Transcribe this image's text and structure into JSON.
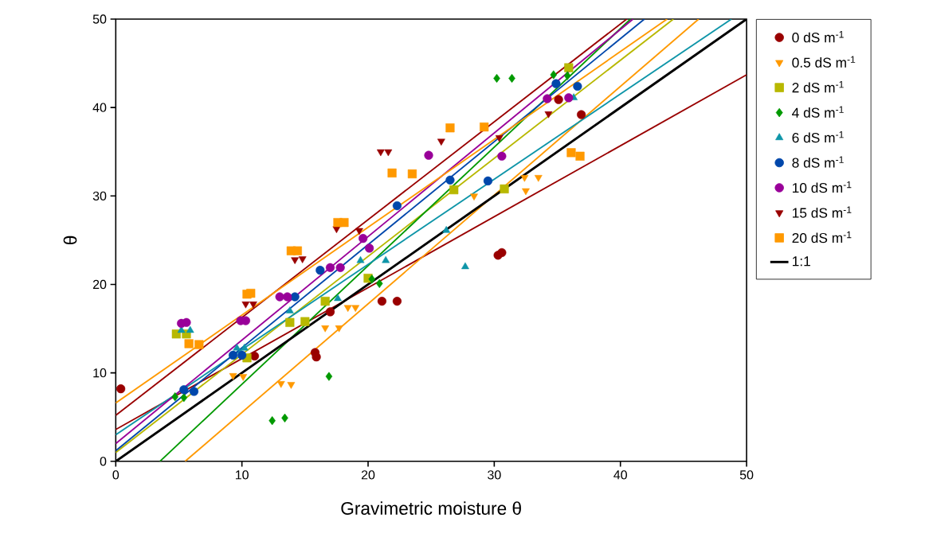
{
  "chart_data": {
    "type": "scatter",
    "xlabel": "Gravimetric moisture θ",
    "ylabel": "θ",
    "xlim": [
      0,
      50
    ],
    "ylim": [
      0,
      50
    ],
    "xticks": [
      0,
      10,
      20,
      30,
      40,
      50
    ],
    "yticks": [
      0,
      10,
      20,
      30,
      40,
      50
    ],
    "grid": false,
    "legend": "right",
    "series": [
      {
        "name": "0 dS m$^{-1}$",
        "color": "#990000",
        "marker": "circle",
        "x": [
          0.4,
          11.0,
          15.8,
          15.9,
          17.0,
          21.1,
          22.3,
          30.3,
          30.6,
          35.1,
          36.9
        ],
        "values": [
          8.2,
          11.9,
          12.3,
          11.8,
          16.9,
          18.1,
          18.1,
          23.3,
          23.6,
          40.9,
          39.2
        ]
      },
      {
        "name": "0.5 dS m$^{-1}$",
        "color": "#ff9900",
        "marker": "triangle-down",
        "x": [
          9.3,
          10.1,
          13.1,
          13.9,
          16.6,
          17.7,
          18.4,
          19.0,
          28.4,
          32.4,
          32.5,
          33.5
        ],
        "values": [
          9.7,
          9.6,
          8.8,
          8.7,
          15.1,
          15.1,
          17.4,
          17.4,
          30.0,
          32.1,
          30.6,
          32.1
        ]
      },
      {
        "name": "2 dS m$^{-1}$",
        "color": "#b8b800",
        "marker": "square",
        "x": [
          4.8,
          5.6,
          10.4,
          13.8,
          15.0,
          16.6,
          20.0,
          26.8,
          30.8,
          35.9
        ],
        "values": [
          14.4,
          14.4,
          11.7,
          15.7,
          15.8,
          18.1,
          20.7,
          30.7,
          30.8,
          44.5
        ]
      },
      {
        "name": "4 dS m$^{-1}$",
        "color": "#009900",
        "marker": "diamond",
        "x": [
          4.7,
          5.4,
          12.4,
          13.4,
          16.9,
          20.3,
          20.9,
          30.2,
          31.4,
          34.7,
          35.8
        ],
        "values": [
          7.3,
          7.2,
          4.6,
          4.9,
          9.6,
          20.6,
          20.1,
          43.3,
          43.3,
          43.7,
          43.6
        ]
      },
      {
        "name": "6 dS m$^{-1}$",
        "color": "#0e95a8",
        "marker": "triangle",
        "x": [
          5.2,
          5.9,
          9.6,
          10.2,
          13.8,
          17.6,
          19.4,
          21.4,
          26.2,
          27.7,
          36.3
        ],
        "values": [
          14.8,
          14.8,
          12.8,
          12.8,
          17.0,
          18.4,
          22.7,
          22.7,
          26.1,
          22.0,
          41.1
        ]
      },
      {
        "name": "8 dS m$^{-1}$",
        "color": "#0047ab",
        "marker": "circle",
        "x": [
          5.4,
          6.2,
          9.3,
          10.0,
          14.2,
          16.2,
          22.3,
          26.5,
          29.5,
          34.9,
          36.6
        ],
        "values": [
          8.1,
          7.9,
          12.0,
          12.0,
          18.6,
          21.6,
          28.9,
          31.8,
          31.7,
          42.7,
          42.4
        ]
      },
      {
        "name": "10 dS m$^{-1}$",
        "color": "#990099",
        "marker": "circle",
        "x": [
          5.2,
          5.6,
          9.9,
          10.3,
          13.0,
          13.6,
          17.0,
          17.8,
          19.6,
          20.1,
          24.8,
          30.6,
          34.2,
          35.9
        ],
        "values": [
          15.6,
          15.7,
          15.9,
          15.9,
          18.6,
          18.6,
          21.9,
          21.9,
          25.2,
          24.1,
          34.6,
          34.5,
          41.0,
          41.1
        ]
      },
      {
        "name": "15 dS m$^{-1}$",
        "color": "#990000",
        "marker": "triangle-down",
        "x": [
          10.3,
          10.9,
          14.2,
          14.8,
          17.5,
          19.3,
          21.0,
          21.6,
          25.8,
          30.4,
          34.3
        ],
        "values": [
          17.8,
          17.8,
          22.8,
          22.9,
          26.3,
          26.1,
          35.0,
          35.0,
          36.2,
          36.6,
          39.3
        ]
      },
      {
        "name": "20 dS m$^{-1}$",
        "color": "#ff9900",
        "marker": "square",
        "x": [
          5.8,
          6.6,
          10.4,
          10.7,
          13.9,
          14.4,
          17.6,
          18.1,
          21.9,
          23.5,
          26.5,
          29.2,
          36.1,
          36.8
        ],
        "values": [
          13.3,
          13.2,
          18.9,
          19.0,
          23.8,
          23.8,
          27.0,
          27.0,
          32.6,
          32.5,
          37.7,
          37.8,
          34.9,
          34.5
        ]
      },
      {
        "type": "line",
        "color": "#990000",
        "x": [
          0,
          50
        ],
        "values": [
          3.6,
          43.7
        ]
      },
      {
        "type": "line",
        "color": "#ff9900",
        "x": [
          5.5,
          46.2
        ],
        "values": [
          0,
          50
        ]
      },
      {
        "type": "line",
        "color": "#b8b800",
        "x": [
          0,
          44.2
        ],
        "values": [
          1.0,
          50
        ]
      },
      {
        "type": "line",
        "color": "#009900",
        "x": [
          3.5,
          40.8
        ],
        "values": [
          0,
          50
        ]
      },
      {
        "type": "line",
        "color": "#0e95a8",
        "x": [
          0,
          48.8
        ],
        "values": [
          3.0,
          50
        ]
      },
      {
        "type": "line",
        "color": "#0047ab",
        "x": [
          0,
          41.9
        ],
        "values": [
          1.2,
          50
        ]
      },
      {
        "type": "line",
        "color": "#990099",
        "x": [
          0,
          41.0
        ],
        "values": [
          2.0,
          50
        ]
      },
      {
        "type": "line",
        "color": "#990000",
        "x": [
          0,
          40.5
        ],
        "values": [
          5.2,
          50
        ]
      },
      {
        "type": "line",
        "color": "#ff9900",
        "x": [
          0,
          43.7
        ],
        "values": [
          6.6,
          50
        ]
      },
      {
        "name": "1:1",
        "type": "line",
        "color": "#000000",
        "x": [
          0,
          50
        ],
        "values": [
          0,
          50
        ]
      }
    ]
  }
}
